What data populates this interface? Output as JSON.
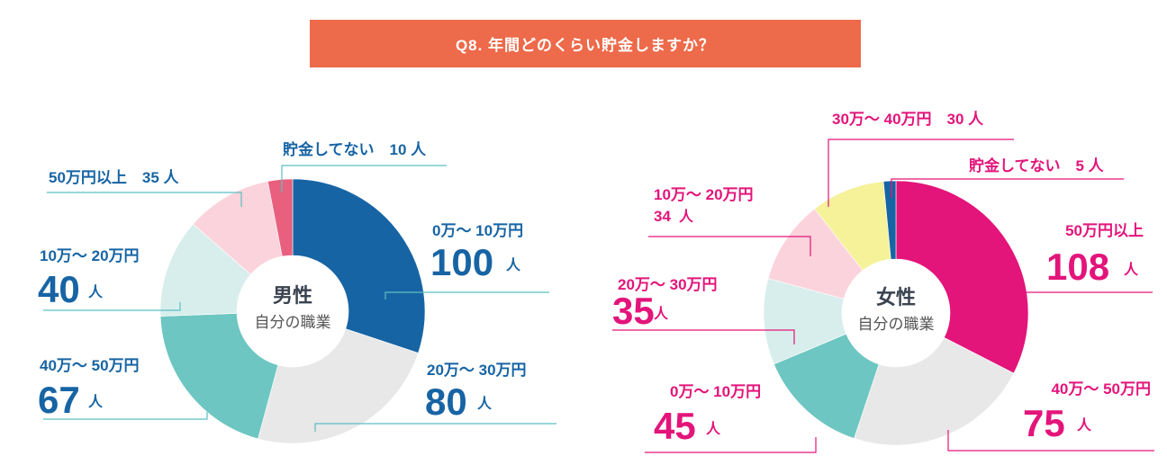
{
  "header": {
    "title": "Q8. 年間どのくらい貯金しますか？"
  },
  "colors": {
    "banner": "#ed6a4a",
    "male_text": "#1764a4",
    "female_text": "#e3147a",
    "male_leader": "#5bbfc2",
    "female_leader": "#e3147a",
    "center_title": "#3a4350",
    "center_sub": "#555555"
  },
  "chart_data": [
    {
      "type": "pie",
      "variant": "donut",
      "title": "男性",
      "subtitle": "自分の職業",
      "unit": "人",
      "slices": [
        {
          "label": "0万〜 10万円",
          "value": 100,
          "color": "#1764a4"
        },
        {
          "label": "20万〜 30万円",
          "value": 80,
          "color": "#e8e8e8"
        },
        {
          "label": "40万〜 50万円",
          "value": 67,
          "color": "#6dc6c2"
        },
        {
          "label": "10万〜 20万円",
          "value": 40,
          "color": "#d8eeec"
        },
        {
          "label": "50万円以上",
          "value": 35,
          "color": "#fbd3dc"
        },
        {
          "label": "貯金してない",
          "value": 10,
          "color": "#e8607e"
        }
      ]
    },
    {
      "type": "pie",
      "variant": "donut",
      "title": "女性",
      "subtitle": "自分の職業",
      "unit": "人",
      "slices": [
        {
          "label": "50万円以上",
          "value": 108,
          "color": "#e3147a"
        },
        {
          "label": "40万〜 50万円",
          "value": 75,
          "color": "#e8e8e8"
        },
        {
          "label": "0万〜 10万円",
          "value": 45,
          "color": "#6dc6c2"
        },
        {
          "label": "20万〜 30万円",
          "value": 35,
          "color": "#d8eeec"
        },
        {
          "label": "10万〜 20万円",
          "value": 34,
          "color": "#fbd3dc"
        },
        {
          "label": "30万〜 40万円",
          "value": 30,
          "color": "#f5f29a"
        },
        {
          "label": "貯金してない",
          "value": 5,
          "color": "#1764a4"
        }
      ]
    }
  ]
}
